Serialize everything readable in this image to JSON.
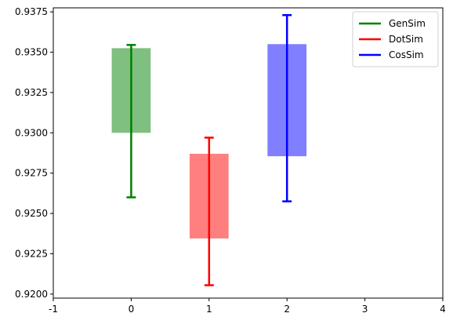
{
  "chart_data": {
    "type": "bar",
    "xlim": [
      -1,
      4
    ],
    "ylim": [
      0.91975,
      0.93775
    ],
    "xticks": [
      -1,
      0,
      1,
      2,
      3,
      4
    ],
    "yticks": [
      0.92,
      0.9225,
      0.925,
      0.9275,
      0.93,
      0.9325,
      0.935,
      0.9375
    ],
    "ytick_labels": [
      "0.9200",
      "0.9225",
      "0.9250",
      "0.9275",
      "0.9300",
      "0.9325",
      "0.9350",
      "0.9375"
    ],
    "grid": false,
    "legend_position": "top-right",
    "series": [
      {
        "name": "GenSim",
        "x": 0,
        "box_low": 0.93,
        "box_high": 0.93525,
        "err_low": 0.926,
        "err_high": 0.93545,
        "color": "#008000"
      },
      {
        "name": "DotSim",
        "x": 1,
        "box_low": 0.92345,
        "box_high": 0.9287,
        "err_low": 0.92055,
        "err_high": 0.9297,
        "color": "#ff0000"
      },
      {
        "name": "CosSim",
        "x": 2,
        "box_low": 0.92855,
        "box_high": 0.9355,
        "err_low": 0.92575,
        "err_high": 0.9373,
        "color": "#0000ff"
      }
    ]
  }
}
